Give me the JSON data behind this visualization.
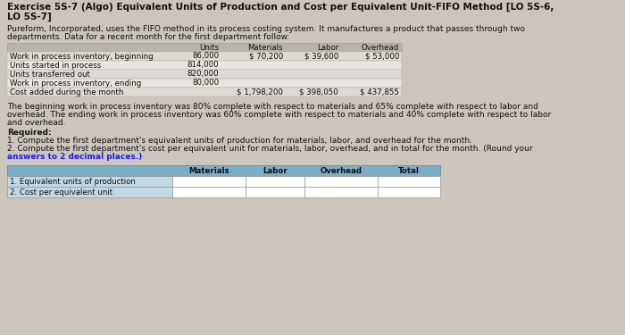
{
  "title_line1": "Exercise 5S-7 (Algo) Equivalent Units of Production and Cost per Equivalent Unit-FIFO Method [LO 5S-6,",
  "title_line2": "LO 5S-7]",
  "intro_line1": "Pureform, Incorporated, uses the FIFO method in its process costing system. It manufactures a product that passes through two",
  "intro_line2": "departments. Data for a recent month for the first department follow:",
  "table1_col_headers": [
    "Units",
    "Materials",
    "Labor",
    "Overhead"
  ],
  "table1_rows": [
    [
      "Work in process inventory, beginning",
      "86,000",
      "$ 70,200",
      "$ 39,600",
      "$ 53,000"
    ],
    [
      "Units started in process",
      "814,000",
      "",
      "",
      ""
    ],
    [
      "Units transferred out",
      "820,000",
      "",
      "",
      ""
    ],
    [
      "Work in process inventory, ending",
      "80,000",
      "",
      "",
      ""
    ],
    [
      "Cost added during the month",
      "",
      "$ 1,798,200",
      "$ 398,050",
      "$ 437,855"
    ]
  ],
  "comp_line1": "The beginning work in process inventory was 80% complete with respect to materials and 65% complete with respect to labor and",
  "comp_line2": "overhead. The ending work in process inventory was 60% complete with respect to materials and 40% complete with respect to labor",
  "comp_line3": "and overhead.",
  "req_label": "Required:",
  "req1": "1. Compute the first department's equivalent units of production for materials, labor, and overhead for the month.",
  "req2a": "2. Compute the first department's cost per equivalent unit for materials, labor, overhead, and in total for the month. (Round your",
  "req2b": "answers to 2 decimal places.)",
  "table2_col_headers": [
    "Materials",
    "Labor",
    "Overhead",
    "Total"
  ],
  "table2_rows": [
    "1. Equivalent units of production",
    "2. Cost per equivalent unit"
  ],
  "bg_color": "#ccc5bb",
  "title_bold": true,
  "table1_header_bg": "#b5b5aa",
  "table1_row_bgs": [
    "#dedad3",
    "#e8e4de",
    "#dedad3",
    "#e8e4de",
    "#dedad3"
  ],
  "table2_header_bg": "#7bafc8",
  "table2_label_bg": "#c2d8e5",
  "table2_cell_bg": "#ffffff",
  "table2_border": "#888888",
  "req2b_color": "#1a1aff",
  "text_color": "#111111"
}
